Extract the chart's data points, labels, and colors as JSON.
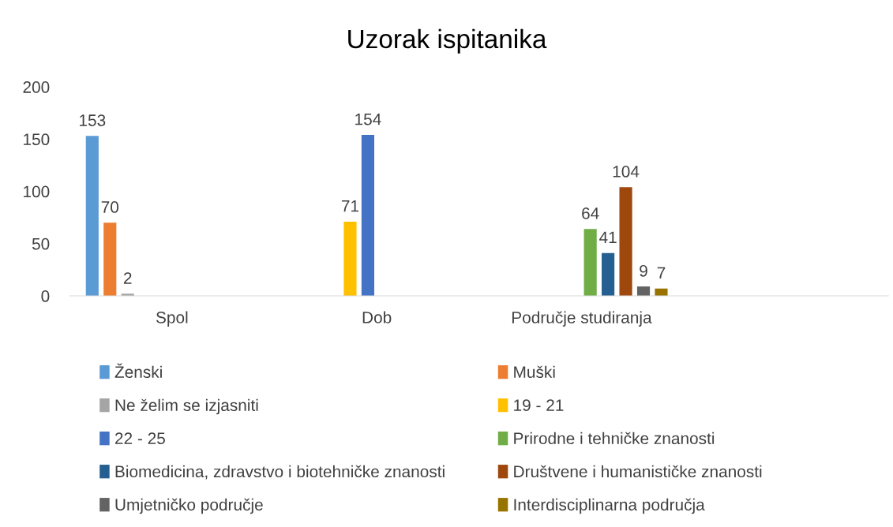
{
  "chart_data": {
    "type": "bar",
    "title": "Uzorak ispitanika",
    "categories": [
      "Spol",
      "Dob",
      "Područje studiranja",
      null
    ],
    "ylim": [
      0,
      200
    ],
    "yticks": [
      0,
      50,
      100,
      150,
      200
    ],
    "grid": false,
    "legend": "bottom",
    "data_labels": true,
    "series": [
      {
        "name": "Ženski",
        "color": "#5b9bd5",
        "values": [
          153,
          null,
          null,
          null
        ]
      },
      {
        "name": "Muški",
        "color": "#ed7d31",
        "values": [
          70,
          null,
          null,
          null
        ]
      },
      {
        "name": "Ne želim se izjasniti",
        "color": "#a5a5a5",
        "values": [
          2,
          null,
          null,
          null
        ]
      },
      {
        "name": "19 - 21",
        "color": "#ffc000",
        "values": [
          null,
          71,
          null,
          null
        ]
      },
      {
        "name": "22 - 25",
        "color": "#4472c4",
        "values": [
          null,
          154,
          null,
          null
        ]
      },
      {
        "name": "Prirodne i tehničke znanosti",
        "color": "#70ad47",
        "values": [
          null,
          null,
          64,
          null
        ]
      },
      {
        "name": "Biomedicina, zdravstvo i biotehničke znanosti",
        "color": "#255e91",
        "values": [
          null,
          null,
          41,
          null
        ]
      },
      {
        "name": "Društvene i humanističke znanosti",
        "color": "#9e480e",
        "values": [
          null,
          null,
          104,
          null
        ]
      },
      {
        "name": "Umjetničko područje",
        "color": "#636363",
        "values": [
          null,
          null,
          9,
          null
        ]
      },
      {
        "name": "Interdisciplinarna područja",
        "color": "#997300",
        "values": [
          null,
          null,
          7,
          null
        ]
      }
    ]
  }
}
